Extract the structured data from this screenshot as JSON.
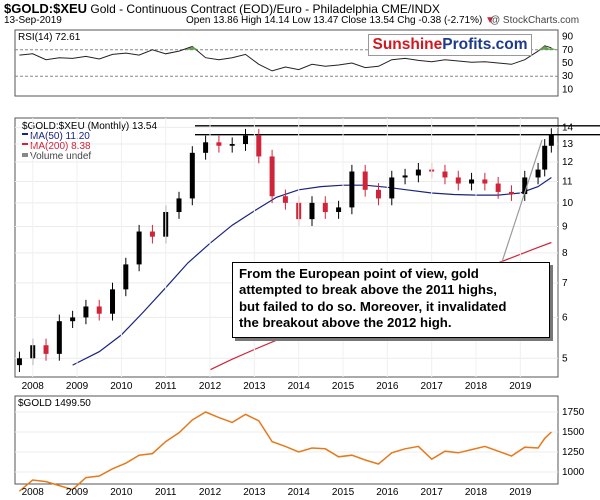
{
  "header": {
    "symbol": "$GOLD:$XEU",
    "title": "Gold - Continuous Contract (EOD)/Euro - Philadelphia",
    "exchange": "CME/INDX",
    "date": "13-Sep-2019",
    "quote": "Open 13.86  High 14.14  Low 13.47  Close 13.54  Chg -0.38 (-2.71%)",
    "down_arrow": "▼",
    "watermark": "@ StockCharts.com"
  },
  "logo": {
    "part1": "Sunshine",
    "part2": "Profits.com"
  },
  "annotation": {
    "lines": [
      "From the European point of view, gold",
      "attempted to break above the 2011 highs,",
      "but failed to do so. Moreover, it invalidated",
      "the breakout above the 2012 high."
    ]
  },
  "colors": {
    "rsi": "#222222",
    "ma50": "#1a237e",
    "ma200": "#d0243a",
    "up": "#000000",
    "down": "#d0243a",
    "gold": "#e57a1c"
  },
  "chart_data": [
    {
      "type": "line",
      "panel": "rsi",
      "label": "RSI(14) 72.61",
      "y_ticks": [
        90,
        70,
        50,
        30,
        10
      ],
      "ylim": [
        0,
        100
      ],
      "reference_lines": [
        70,
        30
      ],
      "x": [
        2007.7,
        2008.0,
        2008.3,
        2008.6,
        2008.9,
        2009.2,
        2009.5,
        2009.8,
        2010.1,
        2010.4,
        2010.7,
        2011.0,
        2011.3,
        2011.6,
        2011.9,
        2012.2,
        2012.5,
        2012.8,
        2013.1,
        2013.4,
        2013.7,
        2014.0,
        2014.3,
        2014.6,
        2014.9,
        2015.2,
        2015.5,
        2015.8,
        2016.1,
        2016.4,
        2016.7,
        2017.0,
        2017.3,
        2017.6,
        2017.9,
        2018.2,
        2018.5,
        2018.8,
        2019.1,
        2019.4,
        2019.55,
        2019.7
      ],
      "values": [
        62,
        64,
        55,
        58,
        57,
        60,
        56,
        63,
        65,
        62,
        70,
        64,
        68,
        75,
        58,
        55,
        58,
        63,
        48,
        38,
        44,
        40,
        48,
        45,
        47,
        50,
        43,
        45,
        55,
        57,
        54,
        52,
        55,
        53,
        51,
        52,
        50,
        48,
        55,
        68,
        76,
        73
      ]
    },
    {
      "type": "candlestick",
      "panel": "price",
      "label": "$GOLD:$XEU (Monthly) 13.54",
      "scale": "log",
      "y_ticks": [
        14,
        13,
        12,
        11,
        10,
        9,
        8,
        7,
        6,
        5
      ],
      "ylim": [
        4.6,
        14.6
      ],
      "x_ticks": [
        "2008",
        "2009",
        "2010",
        "2011",
        "2012",
        "2013",
        "2014",
        "2015",
        "2016",
        "2017",
        "2018",
        "2019"
      ],
      "x": [
        2007.7,
        2008.0,
        2008.3,
        2008.6,
        2008.9,
        2009.2,
        2009.5,
        2009.8,
        2010.1,
        2010.4,
        2010.7,
        2011.0,
        2011.3,
        2011.6,
        2011.9,
        2012.2,
        2012.5,
        2012.8,
        2013.1,
        2013.4,
        2013.7,
        2014.0,
        2014.3,
        2014.6,
        2014.9,
        2015.2,
        2015.5,
        2015.8,
        2016.1,
        2016.4,
        2016.7,
        2017.0,
        2017.3,
        2017.6,
        2017.9,
        2018.2,
        2018.5,
        2018.8,
        2019.1,
        2019.4,
        2019.55,
        2019.7
      ],
      "close": [
        5.0,
        5.3,
        5.1,
        5.9,
        6.0,
        6.3,
        6.1,
        6.8,
        7.6,
        8.8,
        8.6,
        9.6,
        10.2,
        12.5,
        13.1,
        12.9,
        13.0,
        13.5,
        12.3,
        10.3,
        10.0,
        9.3,
        10.0,
        9.6,
        9.8,
        11.5,
        10.6,
        10.2,
        11.2,
        11.3,
        11.6,
        11.5,
        11.2,
        10.9,
        11.1,
        10.9,
        10.5,
        10.4,
        11.2,
        11.6,
        12.9,
        13.54
      ],
      "legend": [
        {
          "name": "MA(50) 11.20",
          "color_key": "ma50"
        },
        {
          "name": "MA(200) 8.38",
          "color_key": "ma200"
        },
        {
          "name": "Volume undef",
          "color_key": "up"
        }
      ],
      "ma50": {
        "x": [
          2008.9,
          2009.5,
          2010.0,
          2010.5,
          2011.0,
          2011.5,
          2012.0,
          2012.5,
          2013.0,
          2013.5,
          2014.0,
          2014.5,
          2015.0,
          2015.5,
          2016.0,
          2016.5,
          2017.0,
          2017.5,
          2018.0,
          2018.5,
          2019.0,
          2019.4,
          2019.7
        ],
        "values": [
          4.85,
          5.15,
          5.55,
          6.15,
          6.85,
          7.65,
          8.35,
          9.05,
          9.65,
          10.25,
          10.6,
          10.75,
          10.82,
          10.82,
          10.72,
          10.58,
          10.45,
          10.38,
          10.35,
          10.35,
          10.45,
          10.75,
          11.2
        ]
      },
      "ma200": {
        "x": [
          2012.0,
          2012.5,
          2013.0,
          2013.5,
          2014.0,
          2014.5,
          2015.0,
          2015.5,
          2016.0,
          2016.5,
          2017.0,
          2017.5,
          2018.0,
          2018.5,
          2019.0,
          2019.4,
          2019.7
        ],
        "values": [
          4.75,
          4.98,
          5.2,
          5.42,
          5.62,
          5.82,
          6.02,
          6.22,
          6.42,
          6.65,
          6.88,
          7.12,
          7.38,
          7.65,
          7.95,
          8.2,
          8.38
        ]
      },
      "resistance_lines": [
        14.1,
        13.55
      ]
    },
    {
      "type": "line",
      "panel": "gold_usd",
      "label": "$GOLD 1499.50",
      "y_ticks": [
        1750,
        1500,
        1250,
        1000
      ],
      "ylim": [
        850,
        1950
      ],
      "x": [
        2007.7,
        2008.0,
        2008.3,
        2008.6,
        2008.9,
        2009.2,
        2009.5,
        2009.8,
        2010.1,
        2010.4,
        2010.7,
        2011.0,
        2011.3,
        2011.6,
        2011.9,
        2012.2,
        2012.5,
        2012.8,
        2013.1,
        2013.4,
        2013.7,
        2014.0,
        2014.3,
        2014.6,
        2014.9,
        2015.2,
        2015.5,
        2015.8,
        2016.1,
        2016.4,
        2016.7,
        2017.0,
        2017.3,
        2017.6,
        2017.9,
        2018.2,
        2018.5,
        2018.8,
        2019.1,
        2019.4,
        2019.55,
        2019.7
      ],
      "values": [
        760,
        900,
        880,
        830,
        780,
        930,
        950,
        1040,
        1110,
        1210,
        1230,
        1380,
        1490,
        1650,
        1750,
        1680,
        1620,
        1720,
        1640,
        1380,
        1320,
        1250,
        1300,
        1290,
        1190,
        1210,
        1150,
        1100,
        1240,
        1290,
        1320,
        1160,
        1260,
        1240,
        1280,
        1320,
        1260,
        1200,
        1310,
        1300,
        1420,
        1499.5
      ]
    }
  ]
}
